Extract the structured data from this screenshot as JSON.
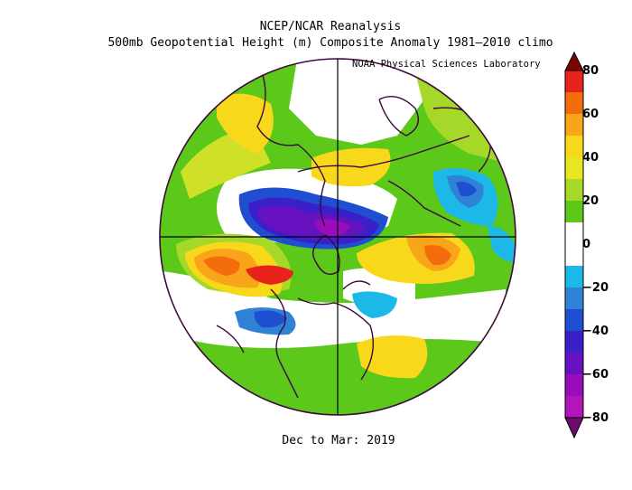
{
  "header": {
    "title_line1": "NCEP/NCAR Reanalysis",
    "title_line2": "500mb Geopotential Height (m) Composite Anomaly 1981–2010 climo",
    "credit": "NOAA Physical Sciences Laboratory"
  },
  "footer": {
    "period": "Dec to Mar: 2019"
  },
  "colorbar": {
    "ticks": [
      "80",
      "60",
      "40",
      "20",
      "0",
      "−20",
      "−40",
      "−60",
      "−80"
    ],
    "colors": [
      "#7a0403",
      "#e8231b",
      "#f46d0d",
      "#f9a51a",
      "#f8d81b",
      "#e8e620",
      "#a6d82a",
      "#5cc81a",
      "#ffffff",
      "#ffffff",
      "#1cb8e8",
      "#2f82d6",
      "#1f4ed0",
      "#3b1fc8",
      "#6612c0",
      "#9a0dbd",
      "#b415b8",
      "#6e0b6e"
    ]
  },
  "palette": {
    "green": "#5cc81a",
    "lightgreen": "#a6d82a",
    "yellowgreen": "#cfe028",
    "yellow": "#f8d81b",
    "orange": "#f9a51a",
    "darkorange": "#f46d0d",
    "red": "#e8231b",
    "cyan": "#1cb8e8",
    "blue": "#2f82d6",
    "darkblue": "#1f4ed0",
    "indigo": "#3b1fc8",
    "purple": "#6612c0",
    "coast": "#3a0a3a"
  }
}
